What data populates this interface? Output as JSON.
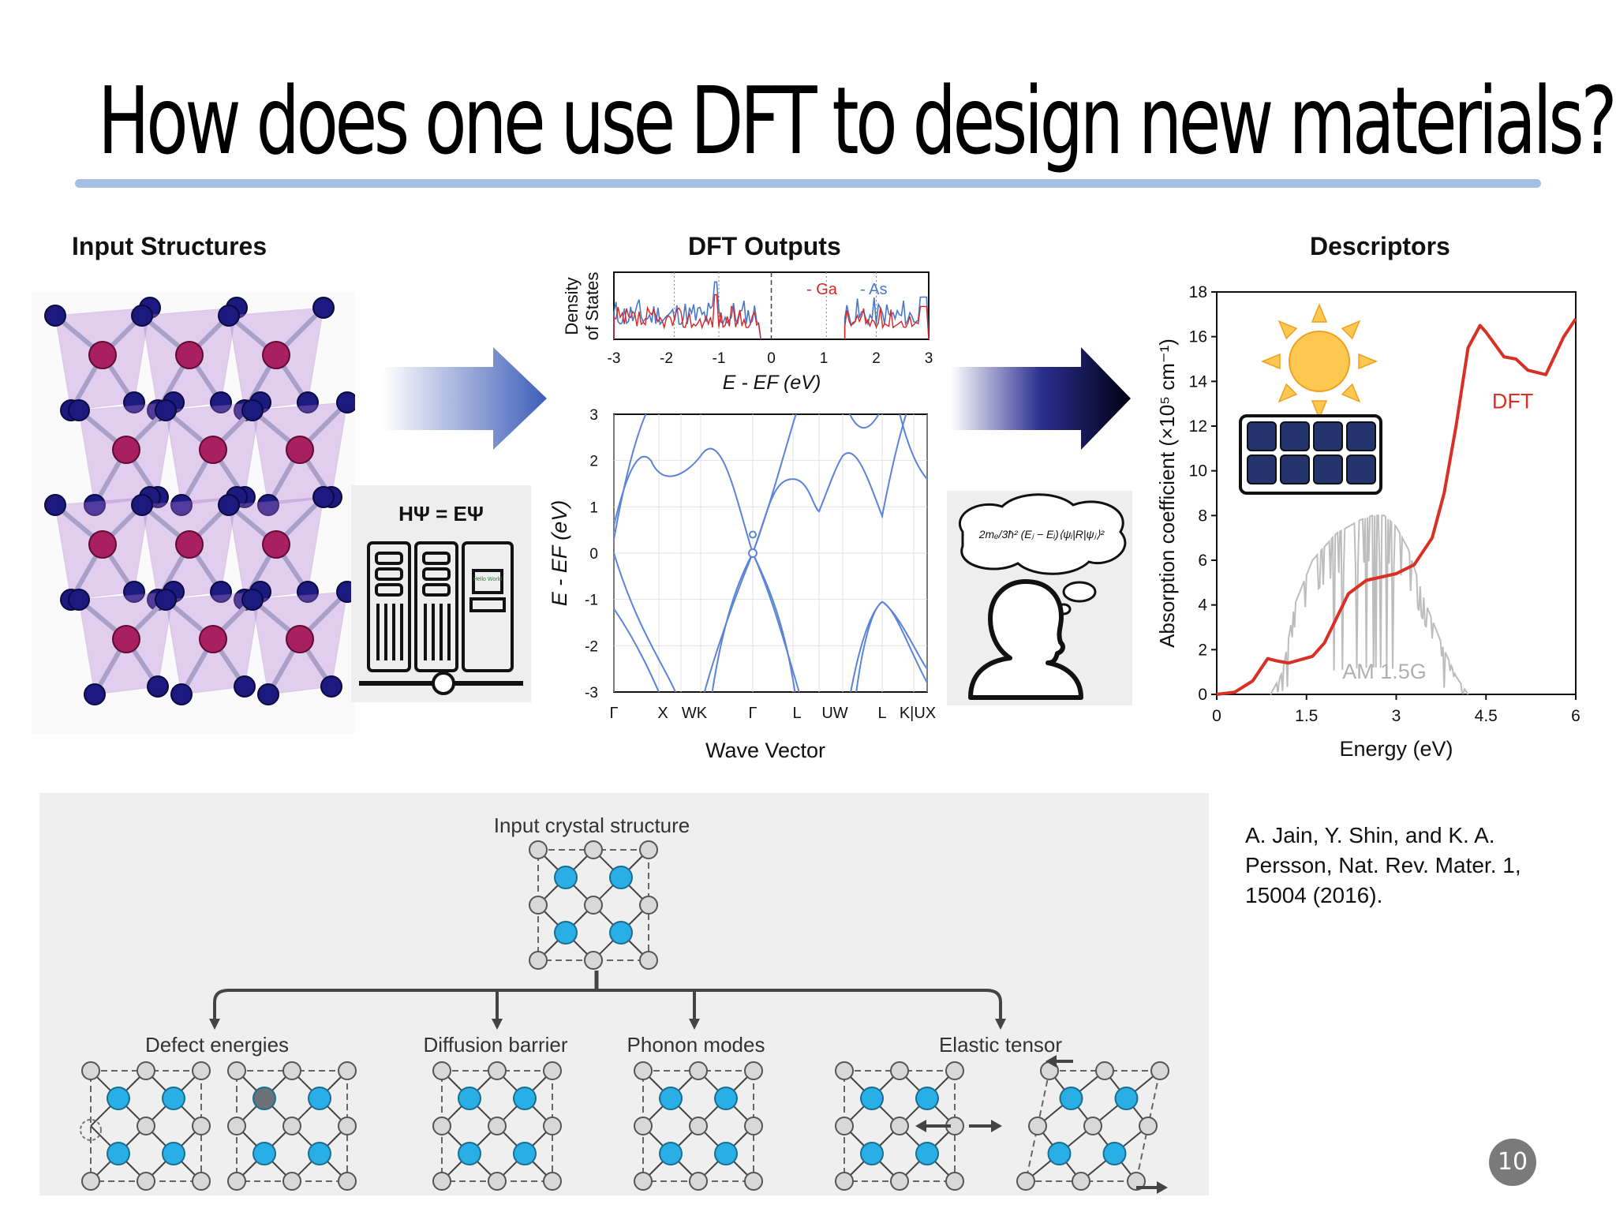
{
  "slide": {
    "title": "How does one use DFT to design new materials?",
    "page_number": "10",
    "citation": "A. Jain, Y. Shin, and K. A. Persson, Nat. Rev. Mater. 1, 15004 (2016)."
  },
  "panels": {
    "input_header": "Input Structures",
    "outputs_header": "DFT Outputs",
    "descriptors_header": "Descriptors",
    "equation": "HΨ = EΨ",
    "screen_text": "Hello World",
    "thought_formula": "2mₑ/3ħ² (Eⱼ − Eᵢ)⟨ψᵢ|R|ψⱼ⟩²"
  },
  "colors": {
    "ga": "#d62728",
    "as": "#4a78c8",
    "band": "#5b84d8",
    "dft_curve": "#d93025",
    "am15g": "#bdbdbd",
    "atom_a": "#a82060",
    "atom_b": "#1c1a7e",
    "diagram_atom": "#29aee6"
  },
  "chart_data": [
    {
      "type": "line",
      "name": "dos",
      "title": "",
      "xlabel": "E - EF (eV)",
      "ylabel": "Density of States",
      "xlim": [
        -3,
        3
      ],
      "xticks": [
        "-3",
        "-2",
        "-1",
        "0",
        "1",
        "2",
        "3"
      ],
      "legend": [
        "- Ga",
        "- As"
      ],
      "legend_position": "top-right"
    },
    {
      "type": "line",
      "name": "band_structure",
      "xlabel": "Wave Vector",
      "ylabel": "E - EF (eV)",
      "ylim": [
        -3,
        3
      ],
      "yticks": [
        "3",
        "2",
        "1",
        "0",
        "-1",
        "-2",
        "-3"
      ],
      "kpoints": [
        "Γ",
        "X",
        "W",
        "K",
        "Γ",
        "L",
        "U",
        "W",
        "L",
        "K|U",
        "X"
      ],
      "kpoint_labels": [
        "Γ",
        "X",
        "WK",
        "Γ",
        "L",
        "UW",
        "L",
        "K|UX"
      ]
    },
    {
      "type": "line",
      "name": "absorption",
      "xlabel": "Energy (eV)",
      "ylabel": "Absorption coefficient (×10⁵ cm⁻¹)",
      "xlim": [
        0,
        6
      ],
      "ylim": [
        0,
        18
      ],
      "xticks": [
        "0",
        "1.5",
        "3",
        "4.5",
        "6"
      ],
      "yticks": [
        "0",
        "2",
        "4",
        "6",
        "8",
        "10",
        "12",
        "14",
        "16",
        "18"
      ],
      "series": [
        {
          "name": "DFT",
          "x": [
            0,
            0.3,
            0.6,
            0.85,
            1.0,
            1.2,
            1.6,
            1.8,
            2.2,
            2.5,
            3.0,
            3.3,
            3.6,
            3.8,
            4.0,
            4.2,
            4.4,
            4.5,
            4.8,
            5.0,
            5.2,
            5.5,
            5.8,
            6.0
          ],
          "y": [
            0,
            0.1,
            0.6,
            1.6,
            1.5,
            1.4,
            1.7,
            2.3,
            4.5,
            5.1,
            5.4,
            5.8,
            7.0,
            9.0,
            12.0,
            15.5,
            16.5,
            16.2,
            15.1,
            15.0,
            14.5,
            14.3,
            16.0,
            16.8
          ]
        },
        {
          "name": "AM 1.5G",
          "x": [
            0.9,
            1.1,
            1.3,
            1.6,
            2.0,
            2.4,
            2.6,
            2.8,
            3.0,
            3.2,
            3.5,
            3.8,
            4.0,
            4.2
          ],
          "y": [
            0,
            1.0,
            4.0,
            6.0,
            7.2,
            7.8,
            8.0,
            8.0,
            7.5,
            6.5,
            4.0,
            2.0,
            0.8,
            0
          ]
        }
      ]
    }
  ],
  "diagram": {
    "input_label": "Input crystal structure",
    "branches": [
      "Defect energies",
      "Diffusion barrier",
      "Phonon modes",
      "Elastic tensor"
    ]
  }
}
